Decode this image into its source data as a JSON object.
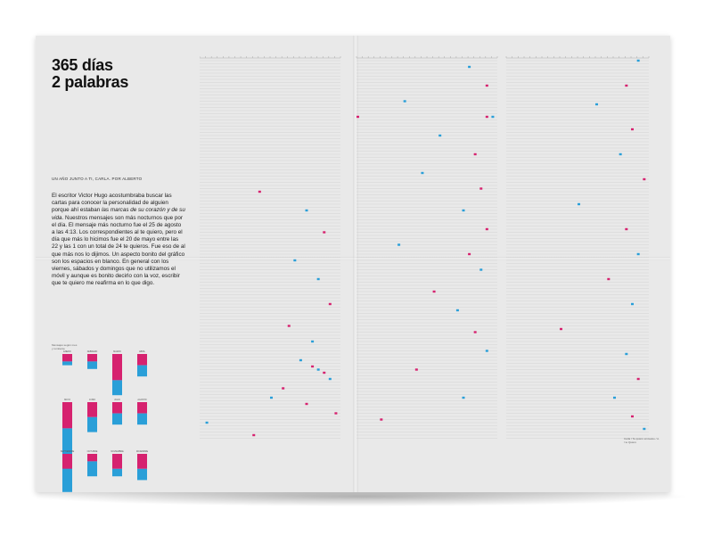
{
  "poster": {
    "title_line1": "365 días",
    "title_line2": "2 palabras",
    "subtitle": "UN AÑO JUNTO A TI, CARLA. POR ALBERTO",
    "body_intro": "El escritor Victor Hugo acostumbraba buscar las cartas para conocer la personalidad de alguien porque ahí estaban ",
    "body_emphasis": "las marcas de su corazón y de su vida",
    "body_rest": ". Nuestros mensajes son más nocturnos que por el día. El mensaje más nocturno fue el 25 de agosto a las 4:13. Los correspondientes al te quiero, pero el día que más lo hicimos fue el 20 de mayo entre las 22 y las 1 con un total de 24 te quieros. Fue eso de al que más nos lo dijimos. Un aspecto bonito del gráfico son los espacios en blanco. En general con los viernes, sábados y domingos que no utilizamos el móvil y aunque es bonito decirlo con la voz, escribir que te quiero me reafirma en lo que digo.",
    "bars_legend": "Mensajes según mes y remitente",
    "footnote": "Carla / Te quiero enviados / A. / te Quiero"
  },
  "colors": {
    "magenta": "#d6226f",
    "blue": "#2a9fd8",
    "purple": "#7a3fb0",
    "paper": "#e9e9e9",
    "ink": "#111111"
  },
  "chart_data": [
    {
      "type": "bar",
      "title": "",
      "months": [
        "ENERO",
        "FEBRERO",
        "MARZO",
        "ABRIL",
        "MAYO",
        "JUNIO",
        "JULIO",
        "AGOSTO",
        "SEPTIEMBRE",
        "OCTUBRE",
        "NOVIEMBRE",
        "DICIEMBRE"
      ],
      "series": [
        {
          "color": "magenta",
          "values": [
            2,
            2,
            7,
            3,
            7,
            4,
            3,
            3,
            4,
            2,
            4,
            4
          ]
        },
        {
          "color": "blue",
          "values": [
            1,
            2,
            4,
            3,
            17,
            4,
            3,
            3,
            3,
            4,
            2,
            3
          ]
        }
      ]
    },
    {
      "type": "scatter",
      "title": "",
      "rows": 365,
      "columns": 24,
      "note": "one row per day of the year, one column per hour of the day; each dot is a 'te quiero' message",
      "points": [
        {
          "day": 42,
          "hour": 10,
          "sender": "magenta"
        },
        {
          "day": 48,
          "hour": 18,
          "sender": "blue"
        },
        {
          "day": 55,
          "hour": 21,
          "sender": "magenta"
        },
        {
          "day": 64,
          "hour": 16,
          "sender": "blue"
        },
        {
          "day": 70,
          "hour": 20,
          "sender": "blue"
        },
        {
          "day": 78,
          "hour": 22,
          "sender": "magenta"
        },
        {
          "day": 85,
          "hour": 15,
          "sender": "magenta"
        },
        {
          "day": 90,
          "hour": 19,
          "sender": "blue"
        },
        {
          "day": 96,
          "hour": 17,
          "sender": "blue"
        },
        {
          "day": 98,
          "hour": 19,
          "sender": "magenta"
        },
        {
          "day": 99,
          "hour": 20,
          "sender": "blue"
        },
        {
          "day": 100,
          "hour": 21,
          "sender": "magenta"
        },
        {
          "day": 102,
          "hour": 22,
          "sender": "blue"
        },
        {
          "day": 105,
          "hour": 14,
          "sender": "magenta"
        },
        {
          "day": 108,
          "hour": 12,
          "sender": "blue"
        },
        {
          "day": 110,
          "hour": 18,
          "sender": "magenta"
        },
        {
          "day": 113,
          "hour": 23,
          "sender": "magenta"
        },
        {
          "day": 116,
          "hour": 1,
          "sender": "blue"
        },
        {
          "day": 120,
          "hour": 9,
          "sender": "magenta"
        },
        {
          "day": 124,
          "hour": 19,
          "sender": "blue"
        },
        {
          "day": 130,
          "hour": 22,
          "sender": "magenta"
        },
        {
          "day": 135,
          "hour": 8,
          "sender": "blue"
        },
        {
          "day": 140,
          "hour": 22,
          "sender": "magenta"
        },
        {
          "day": 140,
          "hour": 23,
          "sender": "blue"
        },
        {
          "day": 140,
          "hour": 0,
          "sender": "magenta"
        },
        {
          "day": 146,
          "hour": 14,
          "sender": "blue"
        },
        {
          "day": 152,
          "hour": 20,
          "sender": "magenta"
        },
        {
          "day": 158,
          "hour": 11,
          "sender": "blue"
        },
        {
          "day": 163,
          "hour": 21,
          "sender": "magenta"
        },
        {
          "day": 170,
          "hour": 18,
          "sender": "blue"
        },
        {
          "day": 176,
          "hour": 22,
          "sender": "magenta"
        },
        {
          "day": 181,
          "hour": 7,
          "sender": "blue"
        },
        {
          "day": 184,
          "hour": 19,
          "sender": "magenta"
        },
        {
          "day": 189,
          "hour": 21,
          "sender": "blue"
        },
        {
          "day": 196,
          "hour": 13,
          "sender": "magenta"
        },
        {
          "day": 202,
          "hour": 17,
          "sender": "blue"
        },
        {
          "day": 209,
          "hour": 20,
          "sender": "magenta"
        },
        {
          "day": 215,
          "hour": 22,
          "sender": "blue"
        },
        {
          "day": 221,
          "hour": 10,
          "sender": "magenta"
        },
        {
          "day": 230,
          "hour": 18,
          "sender": "blue"
        },
        {
          "day": 237,
          "hour": 4,
          "sender": "magenta"
        },
        {
          "day": 244,
          "hour": 22,
          "sender": "blue"
        },
        {
          "day": 252,
          "hour": 20,
          "sender": "magenta"
        },
        {
          "day": 258,
          "hour": 15,
          "sender": "blue"
        },
        {
          "day": 266,
          "hour": 21,
          "sender": "magenta"
        },
        {
          "day": 274,
          "hour": 19,
          "sender": "blue"
        },
        {
          "day": 282,
          "hour": 23,
          "sender": "magenta"
        },
        {
          "day": 290,
          "hour": 12,
          "sender": "blue"
        },
        {
          "day": 298,
          "hour": 20,
          "sender": "magenta"
        },
        {
          "day": 306,
          "hour": 22,
          "sender": "blue"
        },
        {
          "day": 314,
          "hour": 17,
          "sender": "magenta"
        },
        {
          "day": 322,
          "hour": 21,
          "sender": "blue"
        },
        {
          "day": 330,
          "hour": 9,
          "sender": "magenta"
        },
        {
          "day": 338,
          "hour": 20,
          "sender": "blue"
        },
        {
          "day": 346,
          "hour": 22,
          "sender": "magenta"
        },
        {
          "day": 352,
          "hour": 18,
          "sender": "blue"
        },
        {
          "day": 358,
          "hour": 21,
          "sender": "magenta"
        },
        {
          "day": 362,
          "hour": 23,
          "sender": "blue"
        }
      ]
    }
  ]
}
